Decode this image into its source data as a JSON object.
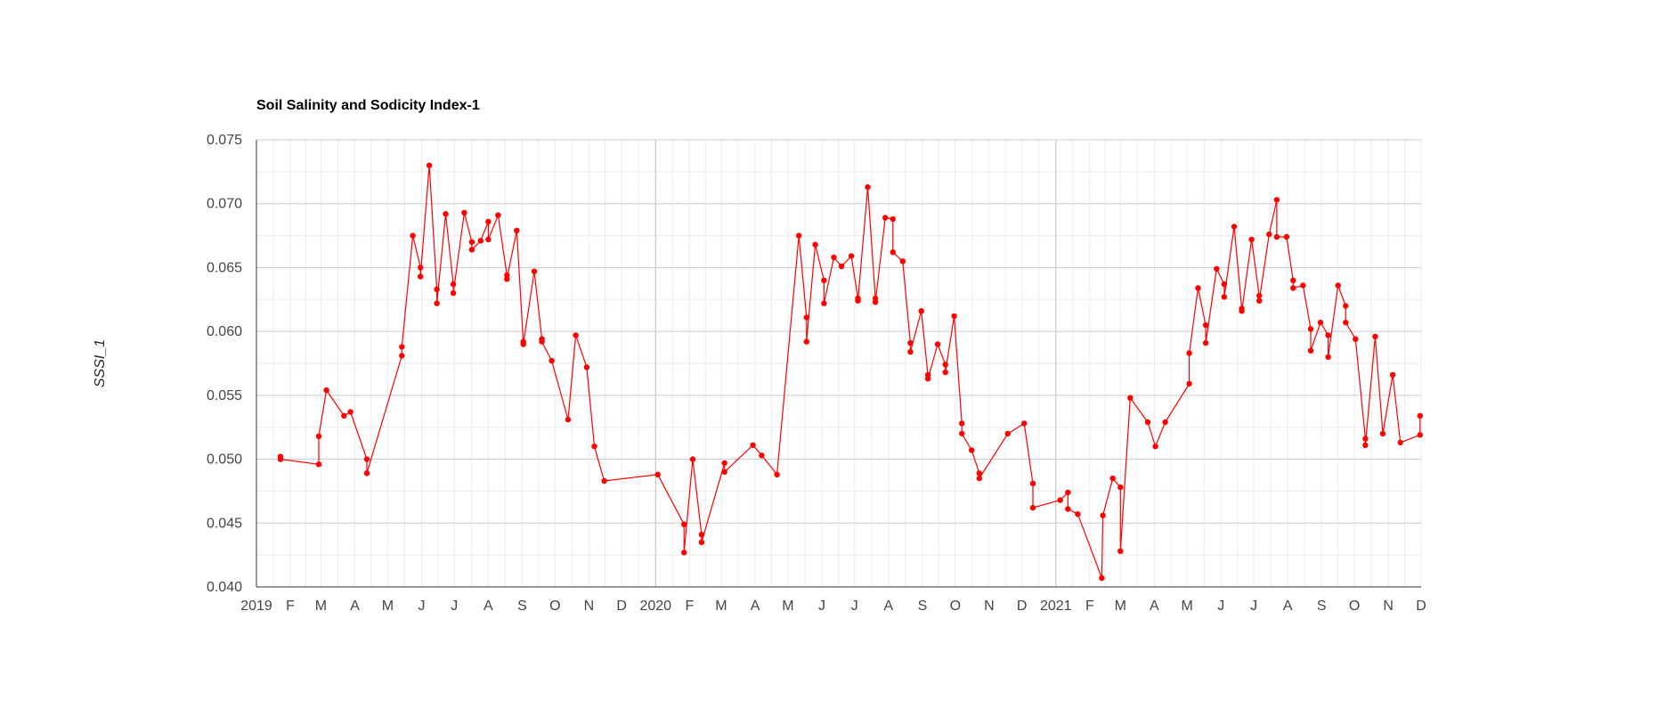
{
  "chart_data": {
    "type": "line",
    "title": "Soil Salinity and Sodicity Index-1",
    "xlabel": "",
    "ylabel": "SSSI_1",
    "xlim": [
      "2019-01-01",
      "2021-12-01"
    ],
    "ylim": [
      0.04,
      0.075
    ],
    "y_ticks": [
      "0.040",
      "0.045",
      "0.050",
      "0.055",
      "0.060",
      "0.065",
      "0.070",
      "0.075"
    ],
    "y_tick_values": [
      0.04,
      0.045,
      0.05,
      0.055,
      0.06,
      0.065,
      0.07,
      0.075
    ],
    "x_ticks": [
      {
        "label": "2019",
        "date": "2019-01-01"
      },
      {
        "label": "F",
        "date": "2019-02-01"
      },
      {
        "label": "M",
        "date": "2019-03-01"
      },
      {
        "label": "A",
        "date": "2019-04-01"
      },
      {
        "label": "M",
        "date": "2019-05-01"
      },
      {
        "label": "J",
        "date": "2019-06-01"
      },
      {
        "label": "J",
        "date": "2019-07-01"
      },
      {
        "label": "A",
        "date": "2019-08-01"
      },
      {
        "label": "S",
        "date": "2019-09-01"
      },
      {
        "label": "O",
        "date": "2019-10-01"
      },
      {
        "label": "N",
        "date": "2019-11-01"
      },
      {
        "label": "D",
        "date": "2019-12-01"
      },
      {
        "label": "2020",
        "date": "2020-01-01"
      },
      {
        "label": "F",
        "date": "2020-02-01"
      },
      {
        "label": "M",
        "date": "2020-03-01"
      },
      {
        "label": "A",
        "date": "2020-04-01"
      },
      {
        "label": "M",
        "date": "2020-05-01"
      },
      {
        "label": "J",
        "date": "2020-06-01"
      },
      {
        "label": "J",
        "date": "2020-07-01"
      },
      {
        "label": "A",
        "date": "2020-08-01"
      },
      {
        "label": "S",
        "date": "2020-09-01"
      },
      {
        "label": "O",
        "date": "2020-10-01"
      },
      {
        "label": "N",
        "date": "2020-11-01"
      },
      {
        "label": "D",
        "date": "2020-12-01"
      },
      {
        "label": "2021",
        "date": "2021-01-01"
      },
      {
        "label": "F",
        "date": "2021-02-01"
      },
      {
        "label": "M",
        "date": "2021-03-01"
      },
      {
        "label": "A",
        "date": "2021-04-01"
      },
      {
        "label": "M",
        "date": "2021-05-01"
      },
      {
        "label": "J",
        "date": "2021-06-01"
      },
      {
        "label": "J",
        "date": "2021-07-01"
      },
      {
        "label": "A",
        "date": "2021-08-01"
      },
      {
        "label": "S",
        "date": "2021-09-01"
      },
      {
        "label": "O",
        "date": "2021-10-01"
      },
      {
        "label": "N",
        "date": "2021-11-01"
      },
      {
        "label": "D",
        "date": "2021-12-01"
      }
    ],
    "grid": true,
    "legend": "none",
    "series_color": "#ff0000",
    "series": [
      {
        "values": [
          [
            "2019-01-23",
            0.0502
          ],
          [
            "2019-01-23",
            0.05
          ],
          [
            "2019-02-27",
            0.0496
          ],
          [
            "2019-02-27",
            0.0518
          ],
          [
            "2019-03-06",
            0.0554
          ],
          [
            "2019-03-22",
            0.0534
          ],
          [
            "2019-03-28",
            0.0537
          ],
          [
            "2019-04-12",
            0.05
          ],
          [
            "2019-04-12",
            0.0489
          ],
          [
            "2019-05-14",
            0.0581
          ],
          [
            "2019-05-14",
            0.0588
          ],
          [
            "2019-05-24",
            0.0675
          ],
          [
            "2019-05-31",
            0.065
          ],
          [
            "2019-05-31",
            0.0643
          ],
          [
            "2019-06-08",
            0.073
          ],
          [
            "2019-06-15",
            0.0633
          ],
          [
            "2019-06-15",
            0.0622
          ],
          [
            "2019-06-23",
            0.0692
          ],
          [
            "2019-06-30",
            0.0637
          ],
          [
            "2019-06-30",
            0.063
          ],
          [
            "2019-07-10",
            0.0693
          ],
          [
            "2019-07-17",
            0.067
          ],
          [
            "2019-07-17",
            0.0664
          ],
          [
            "2019-07-25",
            0.0671
          ],
          [
            "2019-08-01",
            0.0686
          ],
          [
            "2019-08-01",
            0.0672
          ],
          [
            "2019-08-10",
            0.0691
          ],
          [
            "2019-08-18",
            0.0644
          ],
          [
            "2019-08-18",
            0.0641
          ],
          [
            "2019-08-27",
            0.0679
          ],
          [
            "2019-09-02",
            0.0592
          ],
          [
            "2019-09-02",
            0.059
          ],
          [
            "2019-09-12",
            0.0647
          ],
          [
            "2019-09-19",
            0.0594
          ],
          [
            "2019-09-19",
            0.0592
          ],
          [
            "2019-09-28",
            0.0577
          ],
          [
            "2019-10-13",
            0.0531
          ],
          [
            "2019-10-20",
            0.0597
          ],
          [
            "2019-10-30",
            0.0572
          ],
          [
            "2019-11-06",
            0.051
          ],
          [
            "2019-11-15",
            0.0483
          ],
          [
            "2020-01-03",
            0.0488
          ],
          [
            "2020-01-27",
            0.0449
          ],
          [
            "2020-01-27",
            0.0427
          ],
          [
            "2020-02-04",
            0.05
          ],
          [
            "2020-02-12",
            0.0441
          ],
          [
            "2020-02-12",
            0.0435
          ],
          [
            "2020-03-04",
            0.0497
          ],
          [
            "2020-03-04",
            0.049
          ],
          [
            "2020-03-30",
            0.0511
          ],
          [
            "2020-04-07",
            0.0503
          ],
          [
            "2020-04-21",
            0.0488
          ],
          [
            "2020-05-11",
            0.0675
          ],
          [
            "2020-05-18",
            0.0611
          ],
          [
            "2020-05-18",
            0.0592
          ],
          [
            "2020-05-26",
            0.0668
          ],
          [
            "2020-06-03",
            0.064
          ],
          [
            "2020-06-03",
            0.0622
          ],
          [
            "2020-06-12",
            0.0658
          ],
          [
            "2020-06-19",
            0.0651
          ],
          [
            "2020-06-28",
            0.0659
          ],
          [
            "2020-07-04",
            0.0626
          ],
          [
            "2020-07-04",
            0.0624
          ],
          [
            "2020-07-13",
            0.0713
          ],
          [
            "2020-07-20",
            0.0626
          ],
          [
            "2020-07-20",
            0.0623
          ],
          [
            "2020-07-29",
            0.0689
          ],
          [
            "2020-08-05",
            0.0688
          ],
          [
            "2020-08-05",
            0.0662
          ],
          [
            "2020-08-14",
            0.0655
          ],
          [
            "2020-08-21",
            0.0591
          ],
          [
            "2020-08-21",
            0.0584
          ],
          [
            "2020-08-31",
            0.0616
          ],
          [
            "2020-09-06",
            0.0566
          ],
          [
            "2020-09-06",
            0.0563
          ],
          [
            "2020-09-15",
            0.059
          ],
          [
            "2020-09-22",
            0.0574
          ],
          [
            "2020-09-22",
            0.0568
          ],
          [
            "2020-09-30",
            0.0612
          ],
          [
            "2020-10-07",
            0.0528
          ],
          [
            "2020-10-07",
            0.052
          ],
          [
            "2020-10-16",
            0.0507
          ],
          [
            "2020-10-23",
            0.0489
          ],
          [
            "2020-10-23",
            0.0485
          ],
          [
            "2020-11-18",
            0.052
          ],
          [
            "2020-12-03",
            0.0528
          ],
          [
            "2020-12-11",
            0.0481
          ],
          [
            "2020-12-11",
            0.0462
          ],
          [
            "2021-01-05",
            0.0468
          ],
          [
            "2021-01-12",
            0.0474
          ],
          [
            "2021-01-12",
            0.0461
          ],
          [
            "2021-01-21",
            0.0457
          ],
          [
            "2021-02-12",
            0.0407
          ],
          [
            "2021-02-13",
            0.0456
          ],
          [
            "2021-02-22",
            0.0485
          ],
          [
            "2021-03-01",
            0.0478
          ],
          [
            "2021-03-01",
            0.0428
          ],
          [
            "2021-03-10",
            0.0548
          ],
          [
            "2021-03-26",
            0.0529
          ],
          [
            "2021-04-02",
            0.051
          ],
          [
            "2021-04-11",
            0.0529
          ],
          [
            "2021-05-03",
            0.0559
          ],
          [
            "2021-05-03",
            0.0583
          ],
          [
            "2021-05-11",
            0.0634
          ],
          [
            "2021-05-18",
            0.0605
          ],
          [
            "2021-05-18",
            0.0591
          ],
          [
            "2021-05-28",
            0.0649
          ],
          [
            "2021-06-04",
            0.0637
          ],
          [
            "2021-06-04",
            0.0627
          ],
          [
            "2021-06-13",
            0.0682
          ],
          [
            "2021-06-20",
            0.0618
          ],
          [
            "2021-06-20",
            0.0616
          ],
          [
            "2021-06-29",
            0.0672
          ],
          [
            "2021-07-06",
            0.0628
          ],
          [
            "2021-07-06",
            0.0624
          ],
          [
            "2021-07-15",
            0.0676
          ],
          [
            "2021-07-22",
            0.0703
          ],
          [
            "2021-07-22",
            0.0674
          ],
          [
            "2021-07-31",
            0.0674
          ],
          [
            "2021-08-06",
            0.064
          ],
          [
            "2021-08-06",
            0.0634
          ],
          [
            "2021-08-15",
            0.0636
          ],
          [
            "2021-08-22",
            0.0602
          ],
          [
            "2021-08-22",
            0.0585
          ],
          [
            "2021-08-31",
            0.0607
          ],
          [
            "2021-09-07",
            0.0597
          ],
          [
            "2021-09-07",
            0.058
          ],
          [
            "2021-09-16",
            0.0636
          ],
          [
            "2021-09-23",
            0.062
          ],
          [
            "2021-09-23",
            0.0607
          ],
          [
            "2021-10-02",
            0.0594
          ],
          [
            "2021-10-11",
            0.0516
          ],
          [
            "2021-10-11",
            0.0511
          ],
          [
            "2021-10-20",
            0.0596
          ],
          [
            "2021-10-27",
            0.052
          ],
          [
            "2021-11-05",
            0.0566
          ],
          [
            "2021-11-12",
            0.0513
          ],
          [
            "2021-11-30",
            0.0519
          ],
          [
            "2021-11-30",
            0.0534
          ]
        ]
      }
    ]
  }
}
